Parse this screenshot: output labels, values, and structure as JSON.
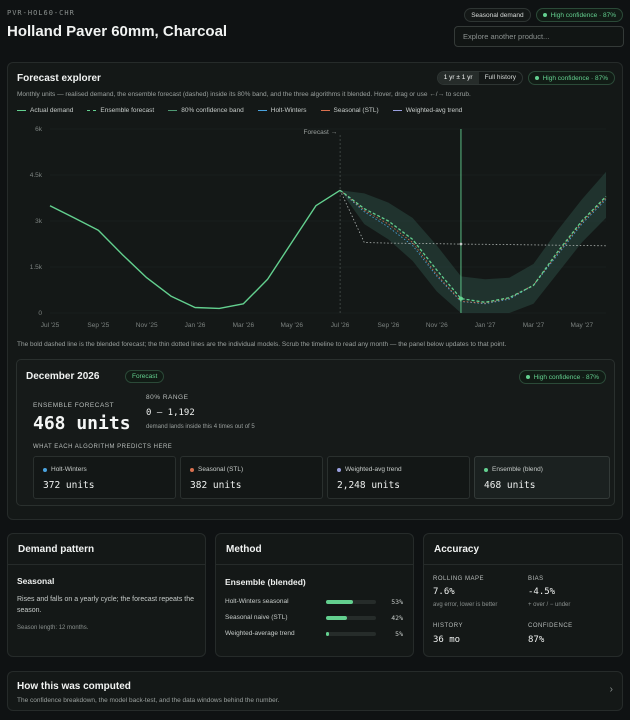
{
  "header": {
    "sku": "PVR-HOL60-CHR",
    "title": "Holland Paver 60mm, Charcoal",
    "pill_pattern": "Seasonal demand",
    "pill_confidence": "High confidence · 87%",
    "search_placeholder": "Explore another product..."
  },
  "explorer": {
    "title": "Forecast explorer",
    "subtitle": "Monthly units — realised demand, the ensemble forecast (dashed) inside its 80% band, and the three algorithms it blended. Hover, drag or use ←/→ to scrub.",
    "range_options": [
      "1 yr ± 1 yr",
      "Full history"
    ],
    "confidence": "High confidence · 87%",
    "legend": [
      {
        "label": "Actual demand",
        "color": "#63d08f"
      },
      {
        "label": "Ensemble forecast",
        "color": "#63d08f"
      },
      {
        "label": "80% confidence band",
        "color": "#4f9a73"
      },
      {
        "label": "Holt-Winters",
        "color": "#4aa3df"
      },
      {
        "label": "Seasonal (STL)",
        "color": "#d9704f"
      },
      {
        "label": "Weighted-avg trend",
        "color": "#9aa0e0"
      }
    ],
    "forecast_marker_label": "Forecast →",
    "caption": "The bold dashed line is the blended forecast; the thin dotted lines are the individual models. Scrub the timeline to read any month — the panel below updates to that point."
  },
  "chart_data": {
    "type": "line",
    "x": [
      "Jul '25",
      "Aug '25",
      "Sep '25",
      "Oct '25",
      "Nov '25",
      "Dec '25",
      "Jan '26",
      "Feb '26",
      "Mar '26",
      "Apr '26",
      "May '26",
      "Jun '26",
      "Jul '26",
      "Aug '26",
      "Sep '26",
      "Oct '26",
      "Nov '26",
      "Dec '26",
      "Jan '27",
      "Feb '27",
      "Mar '27",
      "Apr '27",
      "May '27",
      "Jun '27"
    ],
    "x_tick_labels": [
      "Jul '25",
      "Sep '25",
      "Nov '25",
      "Jan '26",
      "Mar '26",
      "May '26",
      "Jul '26",
      "Sep '26",
      "Nov '26",
      "Jan '27",
      "Mar '27",
      "May '27"
    ],
    "y_ticks": [
      "0",
      "1.5k",
      "3k",
      "4.5k",
      "6k"
    ],
    "ylim": [
      0,
      6000
    ],
    "series": [
      {
        "name": "Actual demand",
        "values": [
          3500,
          3100,
          2700,
          1900,
          1150,
          550,
          180,
          150,
          300,
          1100,
          2300,
          3500,
          4000,
          null,
          null,
          null,
          null,
          null,
          null,
          null,
          null,
          null,
          null,
          null
        ]
      },
      {
        "name": "Ensemble forecast",
        "values": [
          null,
          null,
          null,
          null,
          null,
          null,
          null,
          null,
          null,
          null,
          null,
          null,
          4000,
          3400,
          3000,
          2400,
          1400,
          468,
          350,
          500,
          900,
          2000,
          3000,
          3800
        ]
      },
      {
        "name": "80% confidence band",
        "lower": [
          null,
          null,
          null,
          null,
          null,
          null,
          null,
          null,
          null,
          null,
          null,
          null,
          4000,
          2900,
          2400,
          1700,
          700,
          0,
          0,
          0,
          300,
          1300,
          2300,
          3100
        ],
        "upper": [
          null,
          null,
          null,
          null,
          null,
          null,
          null,
          null,
          null,
          null,
          null,
          null,
          4000,
          3900,
          3600,
          3100,
          2200,
          1192,
          1100,
          1150,
          1600,
          2700,
          3700,
          4600
        ]
      },
      {
        "name": "Holt-Winters",
        "values": [
          null,
          null,
          null,
          null,
          null,
          null,
          null,
          null,
          null,
          null,
          null,
          null,
          4000,
          3300,
          2800,
          2200,
          1200,
          372,
          300,
          450,
          900,
          1900,
          2900,
          3700
        ]
      },
      {
        "name": "Seasonal (STL)",
        "values": [
          null,
          null,
          null,
          null,
          null,
          null,
          null,
          null,
          null,
          null,
          null,
          null,
          4000,
          3350,
          2900,
          2300,
          1250,
          382,
          320,
          480,
          920,
          1950,
          2950,
          3750
        ]
      },
      {
        "name": "Weighted-avg trend",
        "values": [
          null,
          null,
          null,
          null,
          null,
          null,
          null,
          null,
          null,
          null,
          null,
          null,
          4000,
          2300,
          2280,
          2270,
          2260,
          2248,
          2240,
          2230,
          2220,
          2210,
          2200,
          2190
        ]
      }
    ],
    "selected_x": "Dec '26"
  },
  "month_panel": {
    "title": "December 2026",
    "badge": "Forecast",
    "confidence": "High confidence · 87%",
    "ensemble_label": "Ensemble forecast",
    "ensemble_value": "468 units",
    "range_label": "80% range",
    "range_value": "0 – 1,192",
    "range_note": "demand lands inside this 4 times out of 5",
    "algos_label": "What each algorithm predicts here",
    "algos": [
      {
        "name": "Holt-Winters",
        "value": "372 units",
        "color": "#4aa3df"
      },
      {
        "name": "Seasonal (STL)",
        "value": "382 units",
        "color": "#d9704f"
      },
      {
        "name": "Weighted-avg trend",
        "value": "2,248 units",
        "color": "#9aa0e0"
      },
      {
        "name": "Ensemble (blend)",
        "value": "468 units",
        "color": "#63d08f"
      }
    ]
  },
  "demand_pattern": {
    "title": "Demand pattern",
    "heading": "Seasonal",
    "text": "Rises and falls on a yearly cycle; the forecast repeats the season.",
    "note": "Season length: 12 months."
  },
  "method": {
    "title": "Method",
    "heading": "Ensemble (blended)",
    "weights": [
      {
        "name": "Holt-Winters seasonal",
        "pct": "53%",
        "frac": 0.53
      },
      {
        "name": "Seasonal naive (STL)",
        "pct": "42%",
        "frac": 0.42
      },
      {
        "name": "Weighted-average trend",
        "pct": "5%",
        "frac": 0.05
      }
    ]
  },
  "accuracy": {
    "title": "Accuracy",
    "mape_label": "Rolling MAPE",
    "mape_value": "7.6%",
    "mape_note": "avg error, lower is better",
    "bias_label": "Bias",
    "bias_value": "-4.5%",
    "bias_note": "+ over / − under",
    "history_label": "History",
    "history_value": "36 mo",
    "confidence_label": "Confidence",
    "confidence_value": "87%"
  },
  "footer": {
    "title": "How this was computed",
    "text": "The confidence breakdown, the model back-test, and the data windows behind the number.",
    "chevron": "›"
  }
}
